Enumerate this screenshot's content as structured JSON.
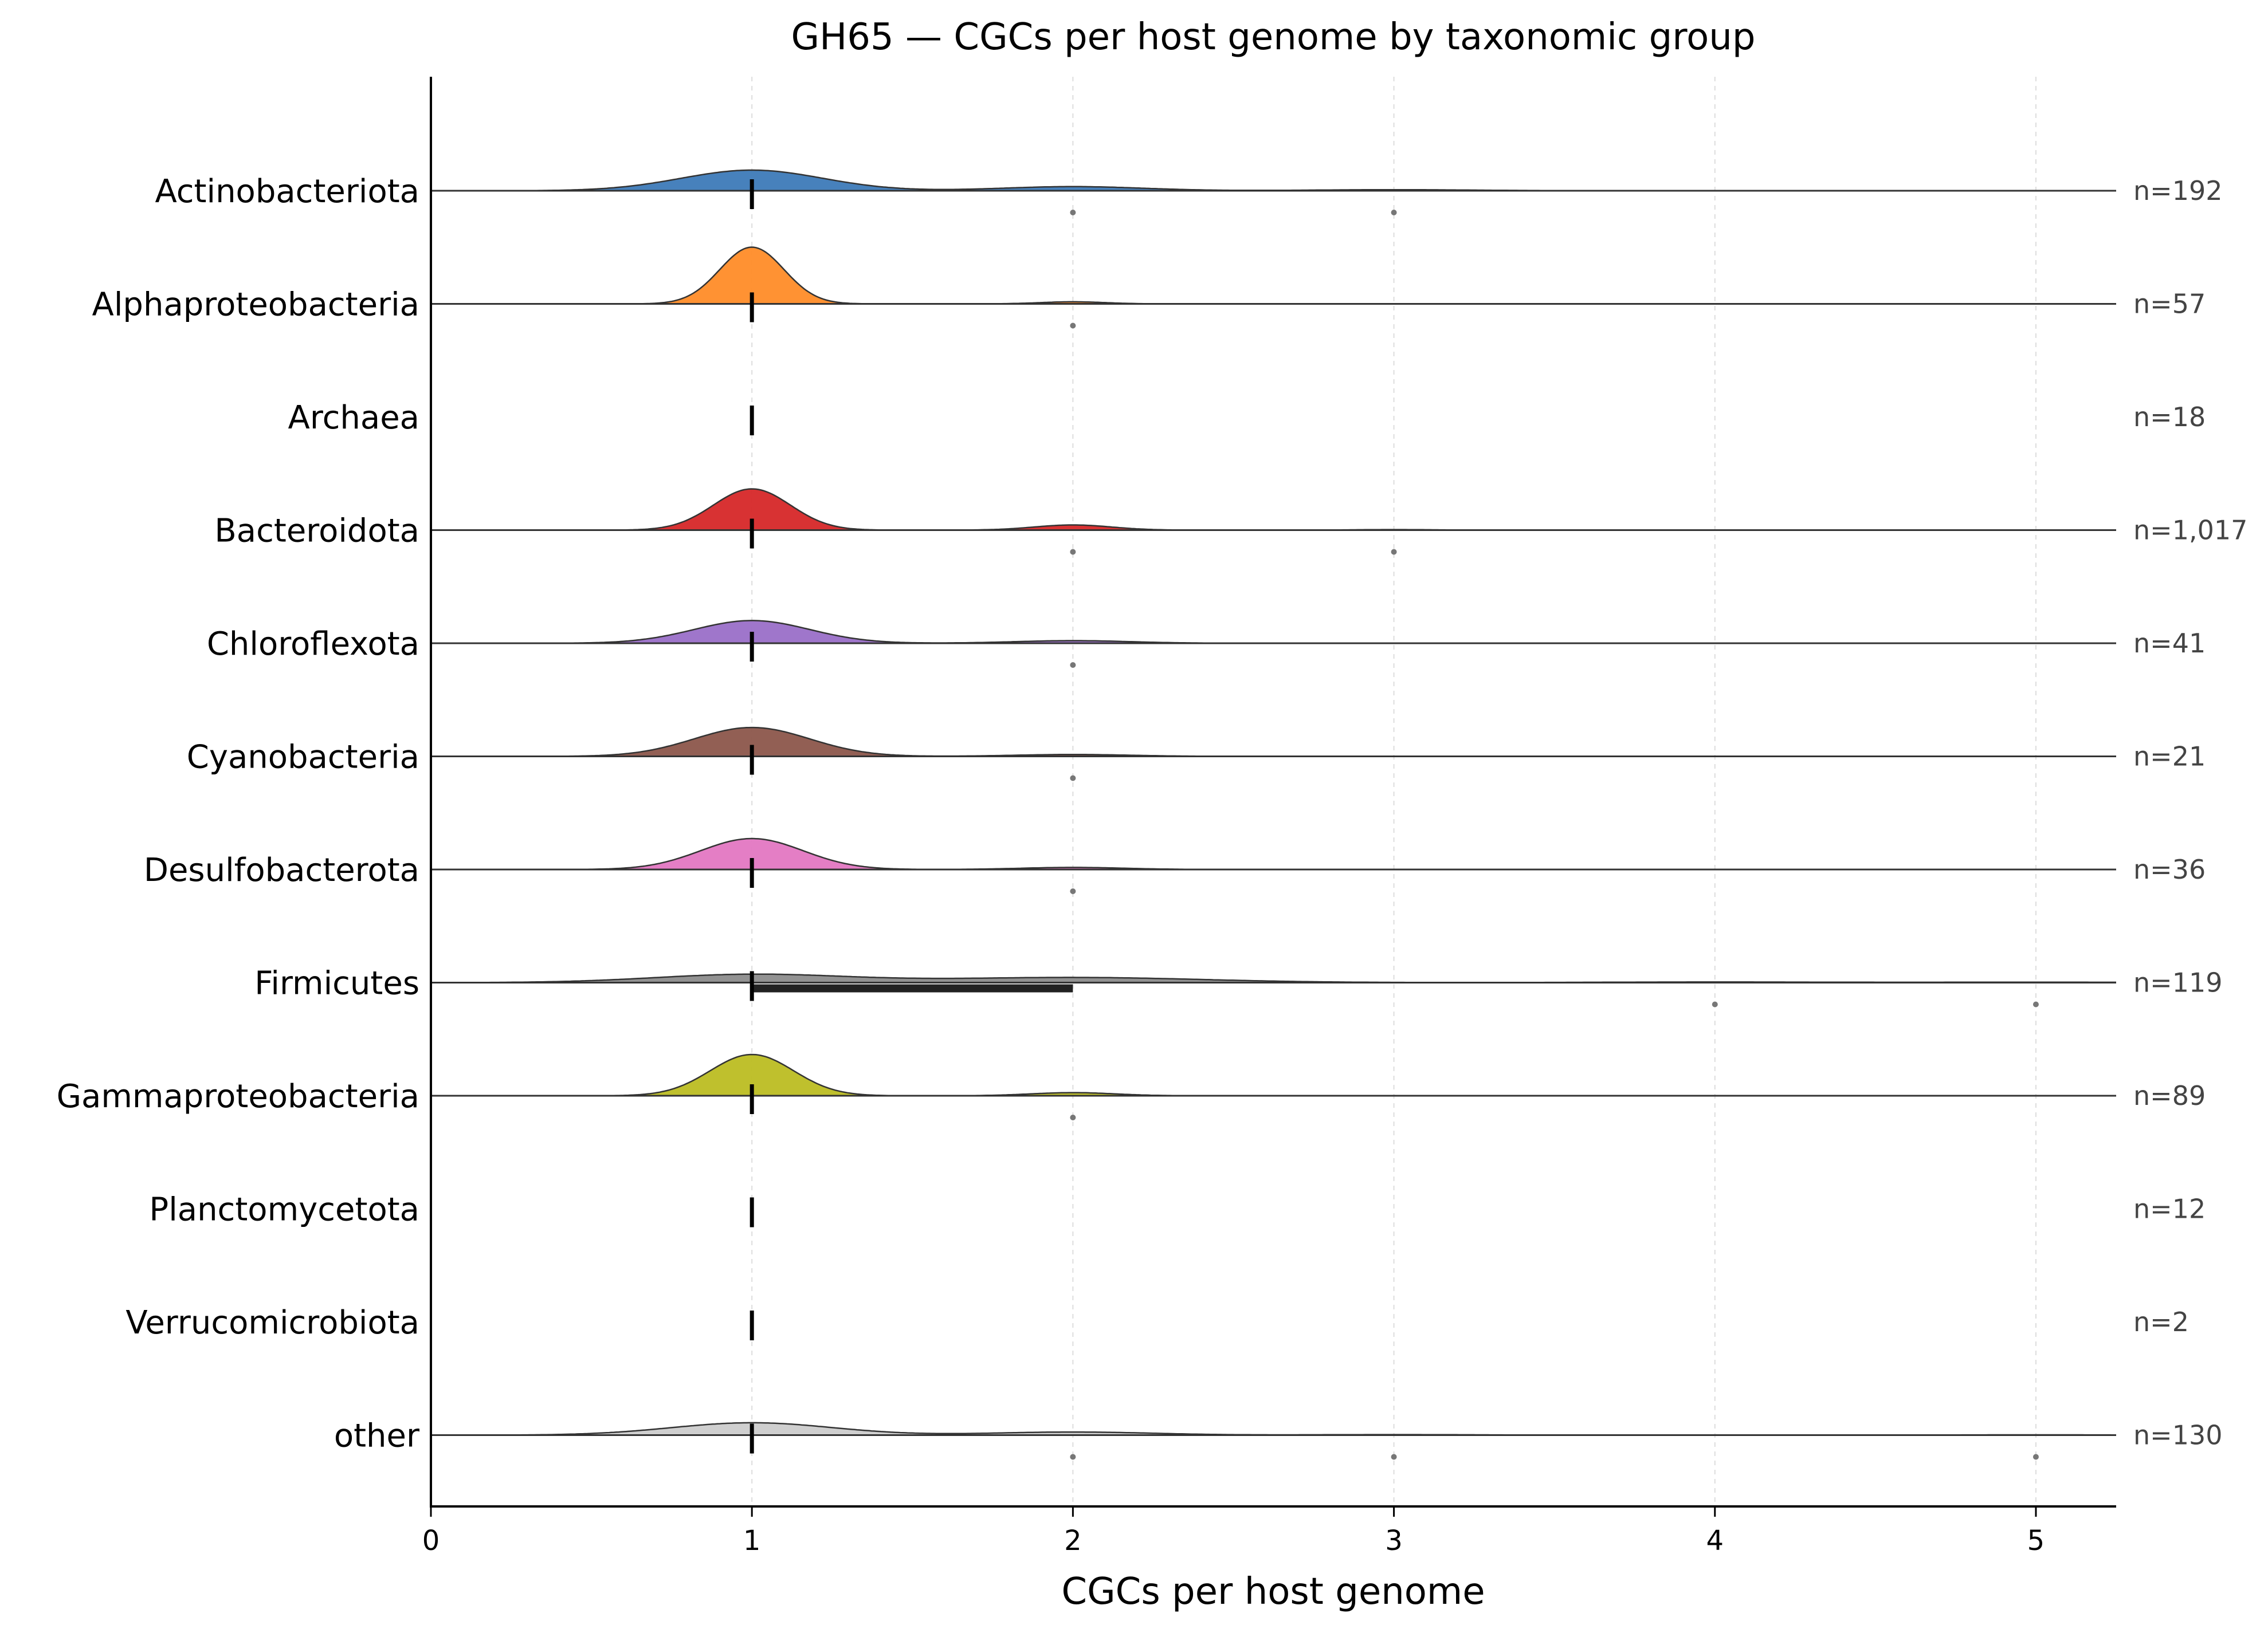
{
  "chart_data": {
    "type": "ridgeline",
    "title": "GH65 — CGCs per host genome by taxonomic group",
    "xlabel": "CGCs per host genome",
    "ylabel": "",
    "xlim": [
      0,
      5.25
    ],
    "x_ticks": [
      "0",
      "1",
      "2",
      "3",
      "4",
      "5"
    ],
    "x_grid": true,
    "groups": [
      {
        "name": "Actinobacteriota",
        "n_label": "n=192",
        "color": "#3d7ab8",
        "median": 1,
        "iqr": [
          1,
          1
        ],
        "density": [
          {
            "x": 1,
            "h": 0.2,
            "w": 0.22
          },
          {
            "x": 2,
            "h": 0.04,
            "w": 0.22
          },
          {
            "x": 3,
            "h": 0.01,
            "w": 0.25
          }
        ],
        "outliers": [
          2,
          3
        ]
      },
      {
        "name": "Alphaproteobacteria",
        "n_label": "n=57",
        "color": "#ff8c28",
        "median": 1,
        "iqr": [
          1,
          1
        ],
        "density": [
          {
            "x": 1,
            "h": 0.55,
            "w": 0.1
          },
          {
            "x": 2,
            "h": 0.02,
            "w": 0.1
          }
        ],
        "outliers": [
          2
        ]
      },
      {
        "name": "Archaea",
        "n_label": "n=18",
        "color": "#2ca02c",
        "median": 1,
        "iqr": [
          1,
          1
        ],
        "density": [],
        "outliers": []
      },
      {
        "name": "Bacteroidota",
        "n_label": "n=1,017",
        "color": "#d62728",
        "median": 1,
        "iqr": [
          1,
          1
        ],
        "density": [
          {
            "x": 1,
            "h": 0.4,
            "w": 0.12
          },
          {
            "x": 2,
            "h": 0.05,
            "w": 0.12
          },
          {
            "x": 3,
            "h": 0.005,
            "w": 0.12
          }
        ],
        "outliers": [
          2,
          3
        ]
      },
      {
        "name": "Chloroflexota",
        "n_label": "n=41",
        "color": "#9a6fc8",
        "median": 1,
        "iqr": [
          1,
          1
        ],
        "density": [
          {
            "x": 1,
            "h": 0.22,
            "w": 0.18
          },
          {
            "x": 2,
            "h": 0.025,
            "w": 0.18
          }
        ],
        "outliers": [
          2
        ]
      },
      {
        "name": "Cyanobacteria",
        "n_label": "n=21",
        "color": "#8c564b",
        "median": 1,
        "iqr": [
          1,
          1
        ],
        "density": [
          {
            "x": 1,
            "h": 0.28,
            "w": 0.18
          },
          {
            "x": 2,
            "h": 0.018,
            "w": 0.18
          }
        ],
        "outliers": [
          2
        ]
      },
      {
        "name": "Desulfobacterota",
        "n_label": "n=36",
        "color": "#e377c2",
        "median": 1,
        "iqr": [
          1,
          1
        ],
        "density": [
          {
            "x": 1,
            "h": 0.3,
            "w": 0.16
          },
          {
            "x": 2,
            "h": 0.02,
            "w": 0.16
          }
        ],
        "outliers": [
          2
        ]
      },
      {
        "name": "Firmicutes",
        "n_label": "n=119",
        "color": "#8c8c8c",
        "median": 1,
        "iqr": [
          1,
          2
        ],
        "density": [
          {
            "x": 1,
            "h": 0.08,
            "w": 0.3
          },
          {
            "x": 2,
            "h": 0.05,
            "w": 0.4
          },
          {
            "x": 4,
            "h": 0.006,
            "w": 0.35
          },
          {
            "x": 5,
            "h": 0.004,
            "w": 0.35
          }
        ],
        "outliers": [
          4,
          5
        ]
      },
      {
        "name": "Gammaproteobacteria",
        "n_label": "n=89",
        "color": "#bcbd22",
        "median": 1,
        "iqr": [
          1,
          1
        ],
        "density": [
          {
            "x": 1,
            "h": 0.4,
            "w": 0.13
          },
          {
            "x": 2,
            "h": 0.03,
            "w": 0.13
          }
        ],
        "outliers": [
          2
        ]
      },
      {
        "name": "Planctomycetota",
        "n_label": "n=12",
        "color": "#17becf",
        "median": 1,
        "iqr": [
          1,
          1
        ],
        "density": [],
        "outliers": []
      },
      {
        "name": "Verrucomicrobiota",
        "n_label": "n=2",
        "color": "#1f77b4",
        "median": 1,
        "iqr": [
          1,
          1
        ],
        "density": [],
        "outliers": []
      },
      {
        "name": "other",
        "n_label": "n=130",
        "color": "#cccccc",
        "median": 1,
        "iqr": [
          1,
          1
        ],
        "density": [
          {
            "x": 1,
            "h": 0.12,
            "w": 0.25
          },
          {
            "x": 2,
            "h": 0.03,
            "w": 0.25
          },
          {
            "x": 3,
            "h": 0.005,
            "w": 0.25
          },
          {
            "x": 5,
            "h": 0.003,
            "w": 0.25
          }
        ],
        "outliers": [
          2,
          3,
          5
        ]
      }
    ]
  }
}
